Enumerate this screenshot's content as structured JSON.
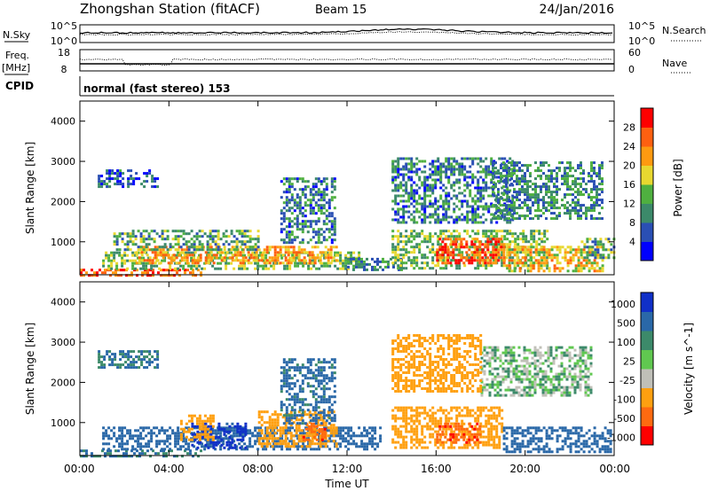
{
  "header": {
    "title": "Zhongshan Station (fitACF)",
    "beam": "Beam 15",
    "date": "24/Jan/2016"
  },
  "sky_panel": {
    "left_label": "N.Sky",
    "left_ticks": [
      "10^5",
      "10^0"
    ],
    "right_label": "N.Search",
    "right_ticks": [
      "10^5",
      "10^0"
    ]
  },
  "freq_panel": {
    "left_label_line1": "Freq.",
    "left_label_line2": "[MHz]",
    "left_ticks": [
      "18",
      "8"
    ],
    "right_label": "Nave",
    "right_ticks": [
      "60",
      "0"
    ]
  },
  "cpid": {
    "label": "CPID",
    "text": "normal (fast stereo) 153"
  },
  "colors": {
    "power_scale": [
      "#0000ff",
      "#2a4fb4",
      "#3c8a6a",
      "#4fb040",
      "#e8d830",
      "#ff9a10",
      "#ff6010",
      "#ff0000"
    ],
    "velocity_scale": [
      "#ff0000",
      "#ff6a10",
      "#ffa010",
      "#c0c0b8",
      "#60c850",
      "#3c8a6a",
      "#2a68a8",
      "#1030c8"
    ]
  },
  "chart_data": [
    {
      "type": "heatmap",
      "title": "",
      "xlabel": "Time UT",
      "ylabel": "Slant Range [km]",
      "x_ticks": [
        "00:00",
        "04:00",
        "08:00",
        "12:00",
        "16:00",
        "20:00",
        "00:00"
      ],
      "xlim_hours": [
        0,
        24
      ],
      "ylim": [
        180,
        4500
      ],
      "y_ticks": [
        1000,
        2000,
        3000,
        4000
      ],
      "colorbar_label": "Power [dB]",
      "colorbar_ticks": [
        "4",
        "8",
        "12",
        "16",
        "20",
        "24",
        "28"
      ],
      "colorbar_range": [
        0,
        32
      ],
      "grid": false,
      "regions": [
        {
          "t0": 0.0,
          "t1": 5.5,
          "r0": 180,
          "r1": 330,
          "value": 26
        },
        {
          "t0": 1.0,
          "t1": 12.5,
          "r0": 330,
          "r1": 760,
          "value": 14
        },
        {
          "t0": 2.5,
          "t1": 11.5,
          "r0": 500,
          "r1": 900,
          "value": 22
        },
        {
          "t0": 1.5,
          "t1": 8.0,
          "r0": 800,
          "r1": 1300,
          "value": 12
        },
        {
          "t0": 12.0,
          "t1": 14.5,
          "r0": 300,
          "r1": 600,
          "value": 10
        },
        {
          "t0": 14.0,
          "t1": 21.0,
          "r0": 350,
          "r1": 1300,
          "value": 14
        },
        {
          "t0": 16.0,
          "t1": 19.0,
          "r0": 500,
          "r1": 1100,
          "value": 27
        },
        {
          "t0": 19.0,
          "t1": 23.5,
          "r0": 300,
          "r1": 900,
          "value": 20
        },
        {
          "t0": 14.0,
          "t1": 19.5,
          "r0": 1500,
          "r1": 3100,
          "value": 9
        },
        {
          "t0": 18.5,
          "t1": 23.5,
          "r0": 1600,
          "r1": 3000,
          "value": 10
        },
        {
          "t0": 22.5,
          "t1": 24.0,
          "r0": 600,
          "r1": 1100,
          "value": 12
        },
        {
          "t0": 9.0,
          "t1": 11.5,
          "r0": 1000,
          "r1": 2600,
          "value": 9
        },
        {
          "t0": 0.8,
          "t1": 3.5,
          "r0": 2400,
          "r1": 2800,
          "value": 7
        }
      ]
    },
    {
      "type": "heatmap",
      "title": "",
      "xlabel": "Time UT",
      "ylabel": "Slant Range [km]",
      "x_ticks": [
        "00:00",
        "04:00",
        "08:00",
        "12:00",
        "16:00",
        "20:00",
        "00:00"
      ],
      "xlim_hours": [
        0,
        24
      ],
      "ylim": [
        180,
        4500
      ],
      "y_ticks": [
        1000,
        2000,
        3000,
        4000
      ],
      "colorbar_label": "Velocity [m s^-1]",
      "colorbar_ticks": [
        "1000",
        "500",
        "100",
        "25",
        "-25",
        "-100",
        "-500",
        "-1000"
      ],
      "grid": false,
      "regions": [
        {
          "t0": 0.0,
          "t1": 5.5,
          "r0": 180,
          "r1": 330,
          "value": 100
        },
        {
          "t0": 1.0,
          "t1": 13.5,
          "r0": 330,
          "r1": 900,
          "value": 300
        },
        {
          "t0": 5.0,
          "t1": 7.5,
          "r0": 400,
          "r1": 1000,
          "value": 800
        },
        {
          "t0": 4.5,
          "t1": 6.0,
          "r0": 600,
          "r1": 1200,
          "value": -300
        },
        {
          "t0": 8.0,
          "t1": 11.5,
          "r0": 400,
          "r1": 1300,
          "value": -300
        },
        {
          "t0": 10.0,
          "t1": 11.0,
          "r0": 600,
          "r1": 1000,
          "value": -800
        },
        {
          "t0": 14.0,
          "t1": 19.0,
          "r0": 350,
          "r1": 1400,
          "value": -300
        },
        {
          "t0": 16.0,
          "t1": 18.0,
          "r0": 500,
          "r1": 1000,
          "value": -800
        },
        {
          "t0": 19.0,
          "t1": 23.8,
          "r0": 300,
          "r1": 900,
          "value": 200
        },
        {
          "t0": 18.0,
          "t1": 23.0,
          "r0": 1700,
          "r1": 2900,
          "value": 0
        },
        {
          "t0": 14.0,
          "t1": 18.0,
          "r0": 1800,
          "r1": 3200,
          "value": -200
        },
        {
          "t0": 9.0,
          "t1": 11.5,
          "r0": 1000,
          "r1": 2600,
          "value": 150
        },
        {
          "t0": 0.8,
          "t1": 3.5,
          "r0": 2400,
          "r1": 2800,
          "value": 120
        }
      ]
    }
  ]
}
